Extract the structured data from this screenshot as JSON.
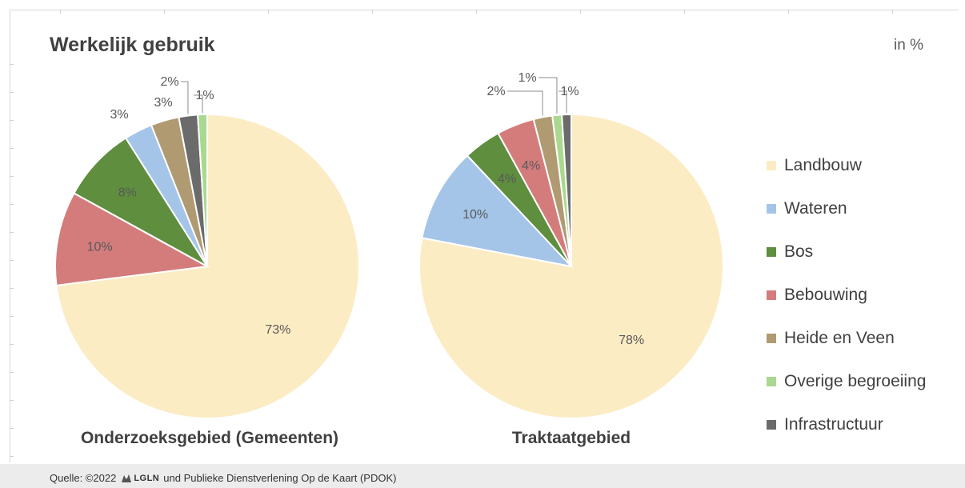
{
  "title": "Werkelijk gebruik",
  "unit_label": "in %",
  "footer": {
    "prefix": "Quelle: ©2022",
    "logo_text": "LGLN",
    "suffix": "und Publieke Dienstverlening Op de Kaart (PDOK)"
  },
  "colors": {
    "Landbouw": "#fcecc4",
    "Wateren": "#a4c5e8",
    "Bos": "#5e8e3e",
    "Bebouwing": "#d47c7c",
    "Heide en Veen": "#b09a72",
    "Overige begroeiing": "#a9d98f",
    "Infrastructuur": "#6b6b6b"
  },
  "chart_data": [
    {
      "type": "pie",
      "title": "Onderzoeksgebied (Gemeenten)",
      "unit": "%",
      "labels": [
        "Landbouw",
        "Bebouwing",
        "Bos",
        "Wateren",
        "Heide en Veen",
        "Infrastructuur",
        "Overige begroeiing"
      ],
      "values": [
        73,
        10,
        8,
        3,
        3,
        2,
        1
      ],
      "value_labels": [
        "73%",
        "10%",
        "8%",
        "3%",
        "3%",
        "2%",
        "1%"
      ]
    },
    {
      "type": "pie",
      "title": "Traktaatgebied",
      "unit": "%",
      "labels": [
        "Landbouw",
        "Wateren",
        "Bos",
        "Bebouwing",
        "Heide en Veen",
        "Overige begroeiing",
        "Infrastructuur"
      ],
      "values": [
        78,
        10,
        4,
        4,
        2,
        1,
        1
      ],
      "value_labels": [
        "78%",
        "10%",
        "4%",
        "4%",
        "2%",
        "1%",
        "1%"
      ]
    }
  ],
  "legend": [
    "Landbouw",
    "Wateren",
    "Bos",
    "Bebouwing",
    "Heide en Veen",
    "Overige begroeiing",
    "Infrastructuur"
  ]
}
